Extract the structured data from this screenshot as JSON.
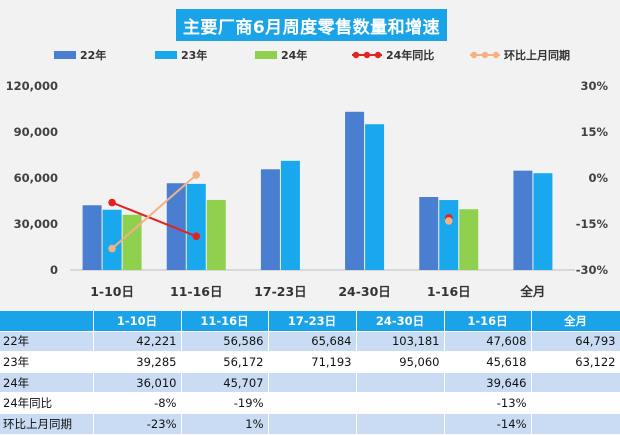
{
  "title": "主要厂商6月周度零售数量和增速",
  "legend": {
    "s22": "22年",
    "s23": "23年",
    "s24": "24年",
    "yoy": "24年同比",
    "mom": "环比上月同期"
  },
  "colors": {
    "s22": "#4a7ed1",
    "s23": "#19a8ee",
    "s24": "#8fd14f",
    "yoy": "#e32222",
    "mom": "#f4b184",
    "title_bg": "#1aa3e8"
  },
  "chart_data": {
    "type": "bar",
    "categories": [
      "1-10日",
      "11-16日",
      "17-23日",
      "24-30日",
      "1-16日",
      "全月"
    ],
    "series": [
      {
        "name": "22年",
        "values": [
          42221,
          56586,
          65684,
          103181,
          47608,
          64793
        ]
      },
      {
        "name": "23年",
        "values": [
          39285,
          56172,
          71193,
          95060,
          45618,
          63122
        ]
      },
      {
        "name": "24年",
        "values": [
          36010,
          45707,
          null,
          null,
          39646,
          null
        ]
      }
    ],
    "line_series": [
      {
        "name": "24年同比",
        "values": [
          -0.08,
          -0.19,
          null,
          null,
          -0.13,
          null
        ]
      },
      {
        "name": "环比上月同期",
        "values": [
          -0.23,
          0.01,
          null,
          null,
          -0.14,
          null
        ]
      }
    ],
    "y_left": {
      "min": 0,
      "max": 120000,
      "ticks": [
        "0",
        "30,000",
        "60,000",
        "90,000",
        "120,000"
      ]
    },
    "y_right": {
      "min": -0.3,
      "max": 0.3,
      "ticks": [
        "-30%",
        "-15%",
        "0%",
        "15%",
        "30%"
      ]
    }
  },
  "table": {
    "header": [
      "",
      "1-10日",
      "11-16日",
      "17-23日",
      "24-30日",
      "1-16日",
      "全月"
    ],
    "rows": [
      [
        "22年",
        "42,221",
        "56,586",
        "65,684",
        "103,181",
        "47,608",
        "64,793"
      ],
      [
        "23年",
        "39,285",
        "56,172",
        "71,193",
        "95,060",
        "45,618",
        "63,122"
      ],
      [
        "24年",
        "36,010",
        "45,707",
        "",
        "",
        "39,646",
        ""
      ],
      [
        "24年同比",
        "-8%",
        "-19%",
        "",
        "",
        "-13%",
        ""
      ],
      [
        "环比上月同期",
        "-23%",
        "1%",
        "",
        "",
        "-14%",
        ""
      ]
    ]
  }
}
